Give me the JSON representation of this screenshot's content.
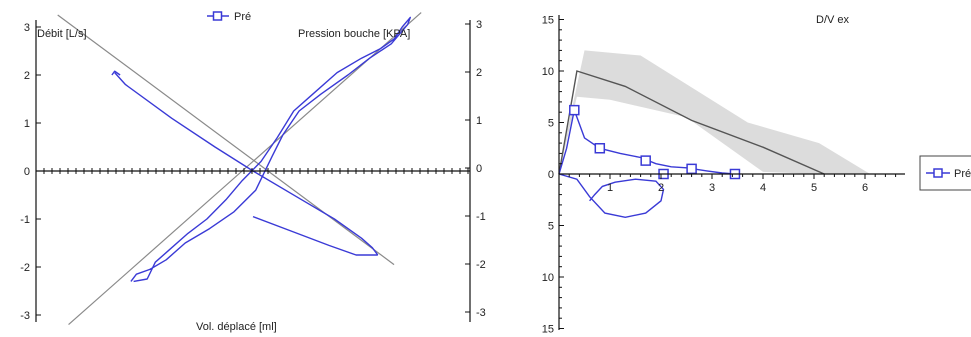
{
  "chart_data": [
    {
      "type": "line",
      "chart_kind": "pressure-flow-volume loop",
      "legend": {
        "entries": [
          "Pré"
        ],
        "placement": "top-center"
      },
      "left_axis": {
        "label": "Débit [L/s]",
        "ticks": [
          "3",
          "2",
          "1",
          "0",
          "-1",
          "-2",
          "-3"
        ]
      },
      "right_axis": {
        "label": "Pression bouche [KPA]",
        "ticks": [
          "3",
          "2",
          "1",
          "0",
          "-1",
          "-2",
          "-3"
        ]
      },
      "x_axis": {
        "label": "Vol. déplacé [ml]"
      },
      "series": [
        {
          "name": "Pré",
          "color": "#3a3ad6",
          "axis": "left",
          "points": [
            [
              -2.2,
              -2.3
            ],
            [
              -1.95,
              -2.25
            ],
            [
              -1.8,
              -1.9
            ],
            [
              -1.55,
              -1.65
            ],
            [
              -1.2,
              -1.3
            ],
            [
              -0.85,
              -1.0
            ],
            [
              -0.5,
              -0.6
            ],
            [
              -0.2,
              -0.2
            ],
            [
              0.15,
              0.2
            ],
            [
              0.45,
              0.7
            ],
            [
              0.75,
              1.25
            ],
            [
              1.1,
              1.6
            ],
            [
              1.55,
              2.05
            ],
            [
              2.0,
              2.35
            ],
            [
              2.35,
              2.55
            ],
            [
              2.6,
              2.75
            ],
            [
              2.75,
              3.0
            ],
            [
              2.9,
              3.2
            ],
            [
              2.85,
              3.05
            ],
            [
              2.55,
              2.65
            ],
            [
              2.15,
              2.35
            ],
            [
              1.75,
              2.0
            ],
            [
              1.25,
              1.6
            ],
            [
              0.85,
              1.25
            ],
            [
              0.55,
              0.75
            ],
            [
              0.35,
              0.3
            ],
            [
              0.05,
              -0.4
            ],
            [
              -0.35,
              -0.85
            ],
            [
              -0.8,
              -1.2
            ],
            [
              -1.25,
              -1.5
            ],
            [
              -1.6,
              -1.85
            ],
            [
              -1.9,
              -2.05
            ],
            [
              -2.15,
              -2.15
            ],
            [
              -2.25,
              -2.3
            ]
          ]
        },
        {
          "name": "Pré",
          "color": "#3a3ad6",
          "axis": "left",
          "points": [
            [
              -2.55,
              2.05
            ],
            [
              -2.35,
              1.8
            ],
            [
              -1.5,
              1.1
            ],
            [
              -0.7,
              0.5
            ],
            [
              0.0,
              0.0
            ],
            [
              0.9,
              -0.6
            ],
            [
              1.5,
              -1.0
            ],
            [
              2.0,
              -1.4
            ],
            [
              2.2,
              -1.6
            ],
            [
              2.3,
              -1.75
            ]
          ]
        },
        {
          "name": "Pré",
          "color": "#3a3ad6",
          "axis": "left",
          "points": [
            [
              0.0,
              -0.95
            ],
            [
              0.7,
              -1.25
            ],
            [
              1.4,
              -1.55
            ],
            [
              1.9,
              -1.75
            ],
            [
              2.3,
              -1.75
            ]
          ]
        },
        {
          "name": "Pré",
          "color": "#3a3ad6",
          "axis": "left",
          "points": [
            [
              -2.6,
              2.0
            ],
            [
              -2.55,
              2.08
            ],
            [
              -2.45,
              2.0
            ]
          ]
        }
      ],
      "reference_lines": [
        {
          "color": "#8a8a8a",
          "from": [
            -3.6,
            3.25
          ],
          "to": [
            2.6,
            -1.95
          ]
        },
        {
          "color": "#8a8a8a",
          "from": [
            -3.4,
            -3.2
          ],
          "to": [
            3.1,
            3.3
          ]
        }
      ],
      "x_range": [
        -4.0,
        4.0
      ],
      "y_range": [
        -3.3,
        3.3
      ],
      "grid": false
    },
    {
      "type": "line",
      "chart_kind": "flow-volume curve",
      "title": "D/V ex",
      "legend": {
        "entries": [
          "Pré"
        ],
        "placement": "right"
      },
      "y_axis": {
        "ticks": [
          "15",
          "10",
          "5",
          "0",
          "5",
          "10",
          "15"
        ],
        "range": [
          -15,
          15
        ]
      },
      "x_axis": {
        "ticks": [
          "1",
          "2",
          "3",
          "4",
          "5",
          "6"
        ],
        "range": [
          0,
          7.5
        ]
      },
      "predicted_band": {
        "color": "#dcdcdc",
        "upper": [
          [
            0.0,
            0.5
          ],
          [
            0.5,
            12.0
          ],
          [
            1.6,
            11.5
          ],
          [
            3.7,
            5.0
          ],
          [
            5.1,
            3.0
          ],
          [
            6.1,
            0.0
          ]
        ],
        "lower": [
          [
            5.1,
            0.0
          ],
          [
            4.0,
            0.2
          ],
          [
            2.5,
            5.5
          ],
          [
            1.0,
            7.2
          ],
          [
            0.35,
            7.5
          ],
          [
            0.0,
            0.0
          ]
        ]
      },
      "predicted_line": {
        "color": "#555555",
        "points": [
          [
            0.0,
            0.0
          ],
          [
            0.35,
            10.0
          ],
          [
            1.3,
            8.5
          ],
          [
            2.6,
            5.2
          ],
          [
            4.0,
            2.6
          ],
          [
            5.2,
            0.0
          ]
        ]
      },
      "series": [
        {
          "name": "Pré",
          "color": "#3a3ad6",
          "expiration": [
            [
              0.0,
              0.0
            ],
            [
              0.15,
              2.5
            ],
            [
              0.3,
              6.2
            ],
            [
              0.5,
              3.5
            ],
            [
              0.8,
              2.5
            ],
            [
              1.2,
              2.0
            ],
            [
              1.6,
              1.6
            ],
            [
              1.9,
              1.0
            ],
            [
              2.2,
              0.7
            ],
            [
              2.5,
              0.6
            ],
            [
              2.9,
              0.3
            ],
            [
              3.2,
              0.1
            ],
            [
              3.45,
              0.0
            ]
          ],
          "inspiration": [
            [
              0.0,
              0.0
            ],
            [
              0.35,
              -0.5
            ],
            [
              0.6,
              -2.2
            ],
            [
              0.9,
              -3.8
            ],
            [
              1.3,
              -4.2
            ],
            [
              1.7,
              -3.8
            ],
            [
              2.0,
              -2.6
            ],
            [
              2.05,
              -1.5
            ],
            [
              1.9,
              -0.7
            ],
            [
              1.5,
              -0.5
            ],
            [
              1.1,
              -0.8
            ],
            [
              0.85,
              -1.2
            ],
            [
              0.7,
              -2.0
            ],
            [
              0.6,
              -2.6
            ]
          ],
          "markers": [
            [
              0.3,
              6.2
            ],
            [
              0.8,
              2.5
            ],
            [
              1.7,
              1.3
            ],
            [
              2.05,
              0.0
            ],
            [
              2.6,
              0.5
            ],
            [
              3.45,
              0.0
            ]
          ]
        }
      ],
      "grid": false
    }
  ]
}
